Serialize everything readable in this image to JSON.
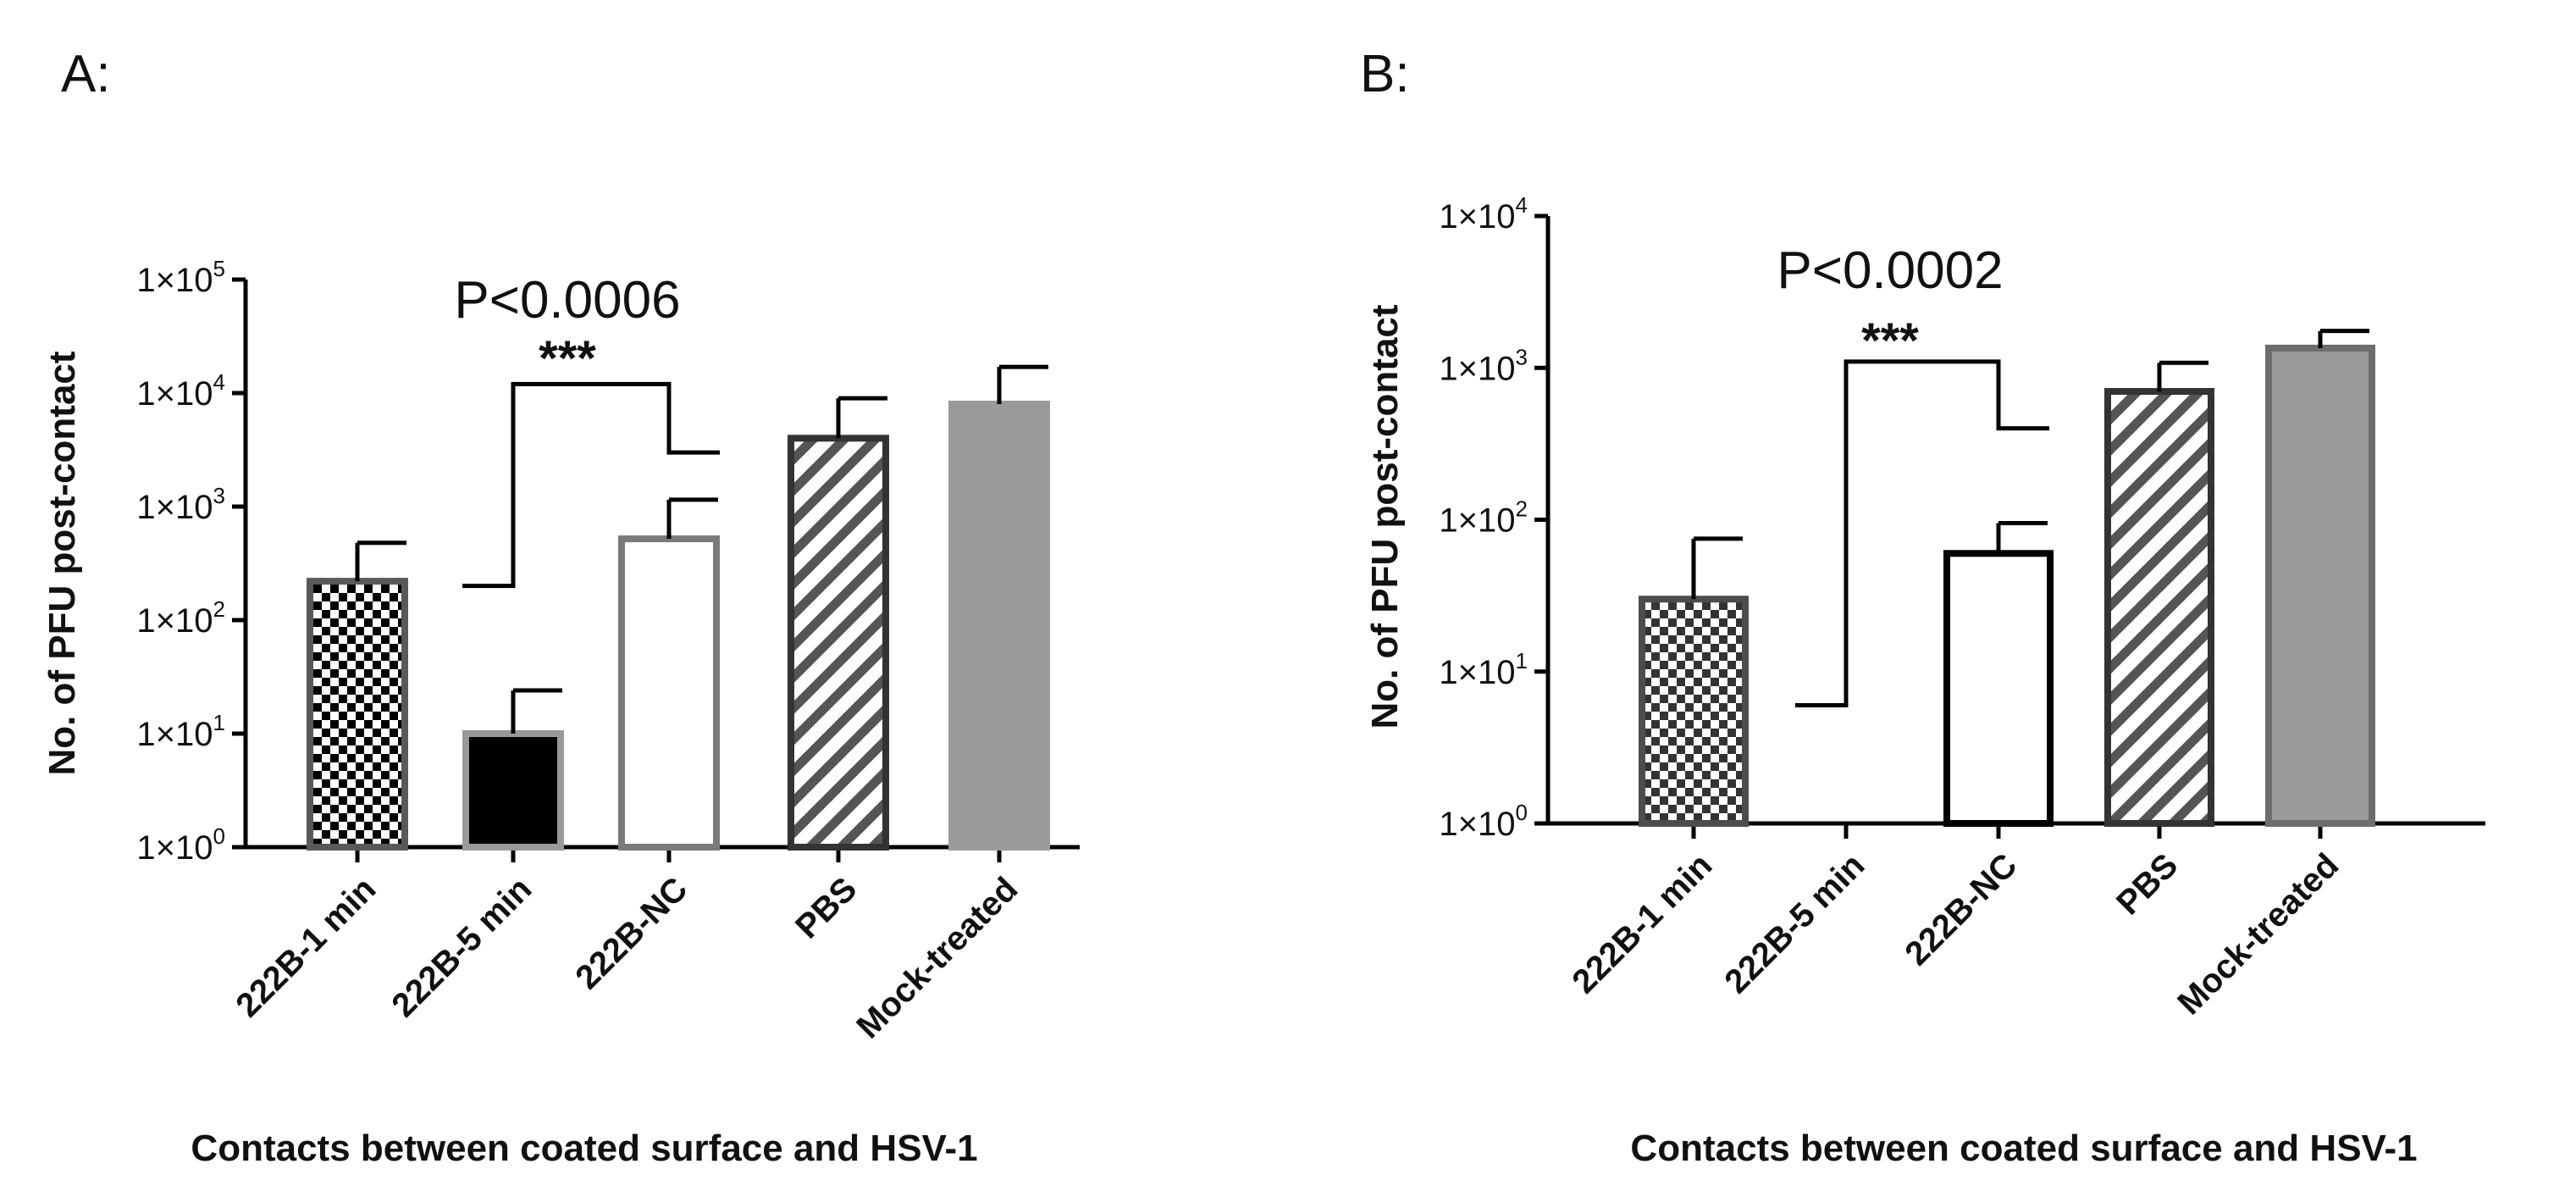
{
  "chart_data": [
    {
      "type": "bar",
      "panel_label": "A:",
      "categories": [
        "222B-1 min",
        "222B-5 min",
        "222B-NC",
        "PBS",
        "Mock-treated"
      ],
      "yscale": "log",
      "ylim": [
        1,
        100000
      ],
      "yticks": [
        {
          "base": "1×10",
          "exp": "0"
        },
        {
          "base": "1×10",
          "exp": "1"
        },
        {
          "base": "1×10",
          "exp": "2"
        },
        {
          "base": "1×10",
          "exp": "3"
        },
        {
          "base": "1×10",
          "exp": "4"
        },
        {
          "base": "1×10",
          "exp": "5"
        }
      ],
      "values": [
        220,
        10,
        520,
        4000,
        8000
      ],
      "error_upper": [
        480,
        24,
        1150,
        9000,
        17000
      ],
      "ylabel": "No. of PFU post-contact",
      "xlabel": "Contacts between coated surface and HSV-1",
      "bar_styles": [
        {
          "pattern": "checker",
          "stroke": "#595959"
        },
        {
          "pattern": "solid",
          "fill": "#000000",
          "stroke": "#9a9a9c"
        },
        {
          "pattern": "none",
          "fill": "#ffffff",
          "stroke": "#7a7a7a"
        },
        {
          "pattern": "hatch",
          "stroke": "#333333"
        },
        {
          "pattern": "solid",
          "fill": "#9a9a9c",
          "stroke": "#9a9a9c"
        }
      ],
      "significance": {
        "left_category": 1,
        "right_category": 2,
        "left_drop": 200,
        "right_drop": 3000,
        "top": 12000,
        "stars": "***",
        "p_value": "P<0.0006"
      }
    },
    {
      "type": "bar",
      "panel_label": "B:",
      "categories": [
        "222B-1 min",
        "222B-5 min",
        "222B-NC",
        "PBS",
        "Mock-treated"
      ],
      "yscale": "log",
      "ylim": [
        1,
        10000
      ],
      "yticks": [
        {
          "base": "1×10",
          "exp": "0"
        },
        {
          "base": "1×10",
          "exp": "1"
        },
        {
          "base": "1×10",
          "exp": "2"
        },
        {
          "base": "1×10",
          "exp": "3"
        },
        {
          "base": "1×10",
          "exp": "4"
        }
      ],
      "values": [
        30,
        0,
        60,
        700,
        1350
      ],
      "error_upper": [
        75,
        0,
        95,
        1080,
        1750
      ],
      "ylabel": "No. of PFU post-contact",
      "xlabel": "Contacts between coated surface and HSV-1",
      "bar_styles": [
        {
          "pattern": "checker",
          "stroke": "#4d4d4d"
        },
        {
          "pattern": "none",
          "fill": "#ffffff",
          "stroke": "#000000"
        },
        {
          "pattern": "none",
          "fill": "#ffffff",
          "stroke": "#000000"
        },
        {
          "pattern": "hatch",
          "stroke": "#333333"
        },
        {
          "pattern": "solid",
          "fill": "#9a9a9c",
          "stroke": "#6d6d6d"
        }
      ],
      "significance": {
        "left_category": 1,
        "right_category": 2,
        "left_drop": 6,
        "right_drop": 400,
        "top": 1100,
        "stars": "***",
        "p_value": "P<0.0002"
      }
    }
  ]
}
